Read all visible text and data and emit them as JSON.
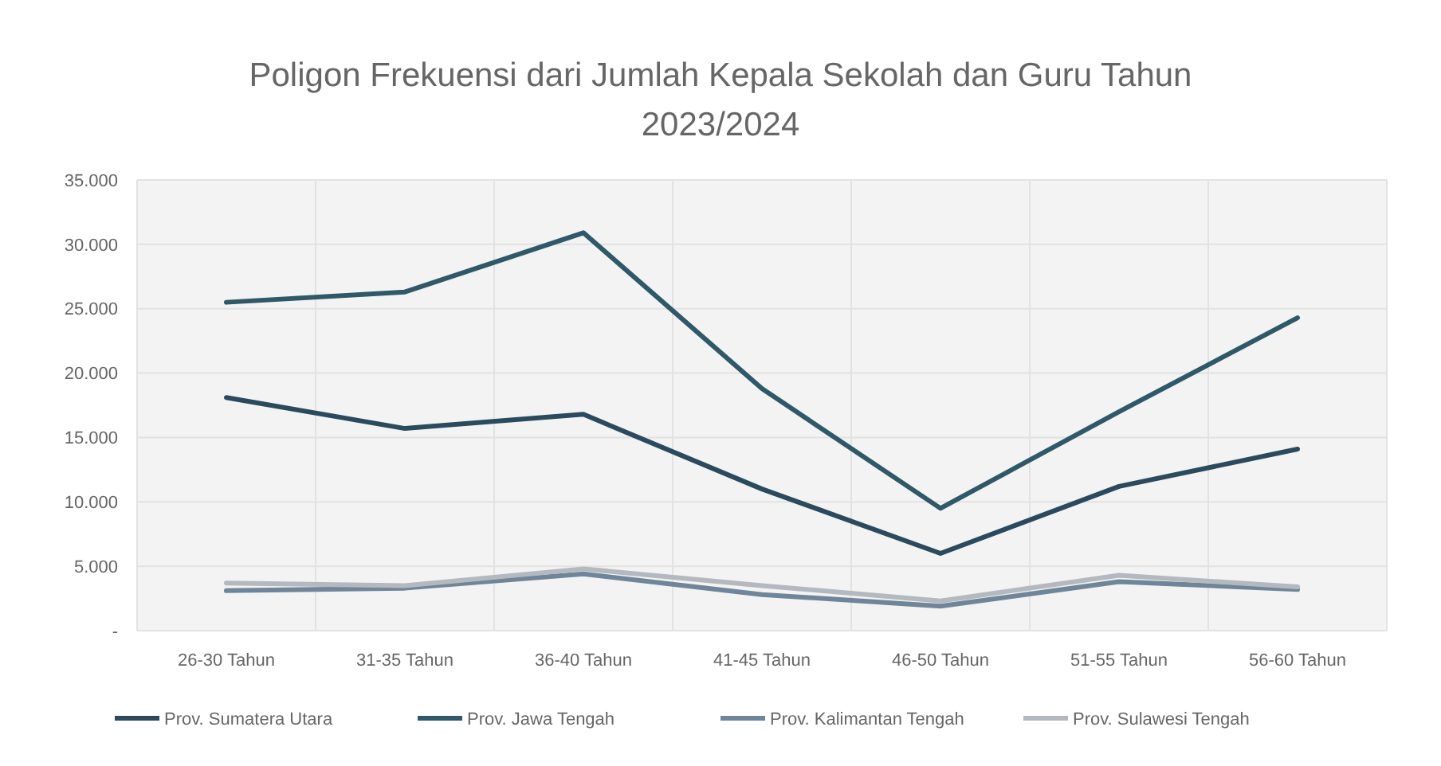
{
  "chart_data": {
    "type": "line",
    "title": "Poligon Frekuensi dari Jumlah Kepala Sekolah dan Guru Tahun 2023/2024",
    "categories": [
      "26-30 Tahun",
      "31-35 Tahun",
      "36-40 Tahun",
      "41-45 Tahun",
      "46-50 Tahun",
      "51-55 Tahun",
      "56-60 Tahun"
    ],
    "series": [
      {
        "name": "Prov. Sumatera Utara",
        "color": "#2b4a5e",
        "values": [
          18100,
          15700,
          16800,
          11000,
          6000,
          11200,
          14100
        ]
      },
      {
        "name": "Prov. Jawa Tengah",
        "color": "#2f5868",
        "values": [
          25500,
          26300,
          30900,
          18800,
          9500,
          17000,
          24300
        ]
      },
      {
        "name": "Prov. Kalimantan Tengah",
        "color": "#6f869a",
        "values": [
          3100,
          3300,
          4400,
          2800,
          1900,
          3800,
          3200
        ]
      },
      {
        "name": "Prov. Sulawesi Tengah",
        "color": "#b4b9bf",
        "values": [
          3700,
          3500,
          4800,
          3500,
          2300,
          4300,
          3400
        ]
      }
    ],
    "ylim": [
      0,
      35000
    ],
    "yticks": [
      {
        "value": 0,
        "label": "-"
      },
      {
        "value": 5000,
        "label": "5.000"
      },
      {
        "value": 10000,
        "label": "10.000"
      },
      {
        "value": 15000,
        "label": "15.000"
      },
      {
        "value": 20000,
        "label": "20.000"
      },
      {
        "value": 25000,
        "label": "25.000"
      },
      {
        "value": 30000,
        "label": "30.000"
      },
      {
        "value": 35000,
        "label": "35.000"
      }
    ],
    "grid": true,
    "legend": "bottom",
    "marker": "none",
    "line_style": "solid"
  }
}
